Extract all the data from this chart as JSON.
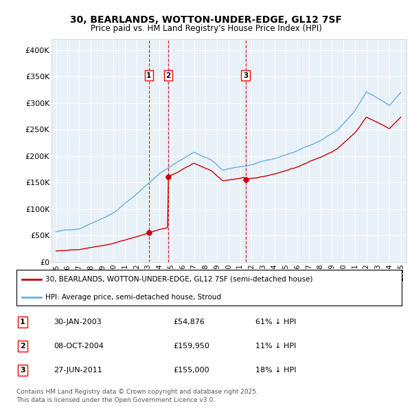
{
  "title": "30, BEARLANDS, WOTTON-UNDER-EDGE, GL12 7SF",
  "subtitle": "Price paid vs. HM Land Registry's House Price Index (HPI)",
  "legend_line1": "30, BEARLANDS, WOTTON-UNDER-EDGE, GL12 7SF (semi-detached house)",
  "legend_line2": "HPI: Average price, semi-detached house, Stroud",
  "footer_line1": "Contains HM Land Registry data © Crown copyright and database right 2025.",
  "footer_line2": "This data is licensed under the Open Government Licence v3.0.",
  "transactions": [
    {
      "num": 1,
      "date": "30-JAN-2003",
      "date_x": 2003.08,
      "price": 54876,
      "price_str": "£54,876",
      "pct": "61% ↓ HPI"
    },
    {
      "num": 2,
      "date": "08-OCT-2004",
      "date_x": 2004.77,
      "price": 159950,
      "price_str": "£159,950",
      "pct": "11% ↓ HPI"
    },
    {
      "num": 3,
      "date": "27-JUN-2011",
      "date_x": 2011.49,
      "price": 155000,
      "price_str": "£155,000",
      "pct": "18% ↓ HPI"
    }
  ],
  "hpi_color": "#6ab0de",
  "price_color": "#cc0000",
  "plot_bg": "#e8f0f8",
  "ylim": [
    0,
    420000
  ],
  "xlim_start": 1994.6,
  "xlim_end": 2025.5,
  "yticks": [
    0,
    50000,
    100000,
    150000,
    200000,
    250000,
    300000,
    350000,
    400000
  ],
  "ytick_labels": [
    "£0",
    "£50K",
    "£100K",
    "£150K",
    "£200K",
    "£250K",
    "£300K",
    "£350K",
    "£400K"
  ],
  "xticks": [
    1995,
    1996,
    1997,
    1998,
    1999,
    2000,
    2001,
    2002,
    2003,
    2004,
    2005,
    2006,
    2007,
    2008,
    2009,
    2010,
    2011,
    2012,
    2013,
    2014,
    2015,
    2016,
    2017,
    2018,
    2019,
    2020,
    2021,
    2022,
    2023,
    2024,
    2025
  ]
}
